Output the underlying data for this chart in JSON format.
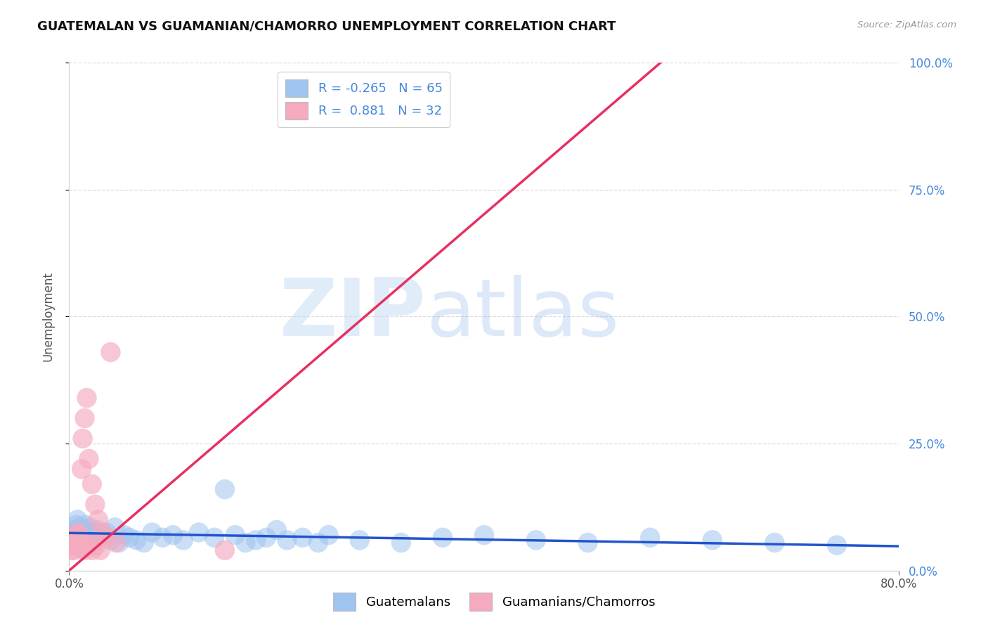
{
  "title": "GUATEMALAN VS GUAMANIAN/CHAMORRO UNEMPLOYMENT CORRELATION CHART",
  "source": "Source: ZipAtlas.com",
  "ylabel": "Unemployment",
  "ytick_labels": [
    "0.0%",
    "25.0%",
    "50.0%",
    "75.0%",
    "100.0%"
  ],
  "ytick_values": [
    0.0,
    0.25,
    0.5,
    0.75,
    1.0
  ],
  "xlim": [
    0.0,
    0.8
  ],
  "ylim": [
    0.0,
    1.0
  ],
  "background_color": "#ffffff",
  "grid_color": "#d8d8d8",
  "blue_scatter_color": "#a0c4f0",
  "pink_scatter_color": "#f5aabf",
  "blue_line_color": "#2255cc",
  "pink_line_color": "#e83060",
  "blue_tick_color": "#4488dd",
  "title_color": "#111111",
  "source_color": "#999999",
  "R1": "-0.265",
  "N1": "65",
  "R2": "0.881",
  "N2": "32",
  "blue_line_x": [
    0.0,
    0.8
  ],
  "blue_line_y": [
    0.074,
    0.048
  ],
  "pink_line_x": [
    0.0,
    0.57
  ],
  "pink_line_y": [
    0.0,
    1.0
  ],
  "blue_x": [
    0.002,
    0.003,
    0.004,
    0.005,
    0.005,
    0.006,
    0.007,
    0.008,
    0.008,
    0.009,
    0.01,
    0.01,
    0.011,
    0.012,
    0.012,
    0.013,
    0.014,
    0.015,
    0.015,
    0.016,
    0.017,
    0.018,
    0.019,
    0.02,
    0.021,
    0.022,
    0.024,
    0.026,
    0.028,
    0.03,
    0.033,
    0.036,
    0.04,
    0.044,
    0.048,
    0.053,
    0.058,
    0.065,
    0.072,
    0.08,
    0.09,
    0.1,
    0.11,
    0.125,
    0.14,
    0.16,
    0.18,
    0.2,
    0.225,
    0.25,
    0.28,
    0.32,
    0.36,
    0.4,
    0.45,
    0.5,
    0.56,
    0.62,
    0.68,
    0.74,
    0.15,
    0.17,
    0.19,
    0.21,
    0.24
  ],
  "blue_y": [
    0.055,
    0.07,
    0.06,
    0.08,
    0.05,
    0.065,
    0.09,
    0.1,
    0.055,
    0.075,
    0.085,
    0.065,
    0.07,
    0.075,
    0.06,
    0.08,
    0.055,
    0.07,
    0.09,
    0.065,
    0.08,
    0.075,
    0.06,
    0.085,
    0.07,
    0.065,
    0.075,
    0.06,
    0.08,
    0.065,
    0.07,
    0.075,
    0.06,
    0.085,
    0.055,
    0.07,
    0.065,
    0.06,
    0.055,
    0.075,
    0.065,
    0.07,
    0.06,
    0.075,
    0.065,
    0.07,
    0.06,
    0.08,
    0.065,
    0.07,
    0.06,
    0.055,
    0.065,
    0.07,
    0.06,
    0.055,
    0.065,
    0.06,
    0.055,
    0.05,
    0.16,
    0.055,
    0.065,
    0.06,
    0.055
  ],
  "pink_x": [
    0.002,
    0.003,
    0.004,
    0.005,
    0.006,
    0.007,
    0.008,
    0.009,
    0.01,
    0.011,
    0.012,
    0.013,
    0.015,
    0.017,
    0.019,
    0.022,
    0.025,
    0.028,
    0.032,
    0.036,
    0.04,
    0.045,
    0.005,
    0.007,
    0.01,
    0.012,
    0.015,
    0.018,
    0.022,
    0.026,
    0.03,
    0.15
  ],
  "pink_y": [
    0.04,
    0.05,
    0.055,
    0.065,
    0.06,
    0.07,
    0.06,
    0.075,
    0.065,
    0.06,
    0.2,
    0.26,
    0.3,
    0.34,
    0.22,
    0.17,
    0.13,
    0.1,
    0.075,
    0.065,
    0.43,
    0.055,
    0.04,
    0.05,
    0.06,
    0.045,
    0.04,
    0.055,
    0.04,
    0.05,
    0.04,
    0.04
  ]
}
